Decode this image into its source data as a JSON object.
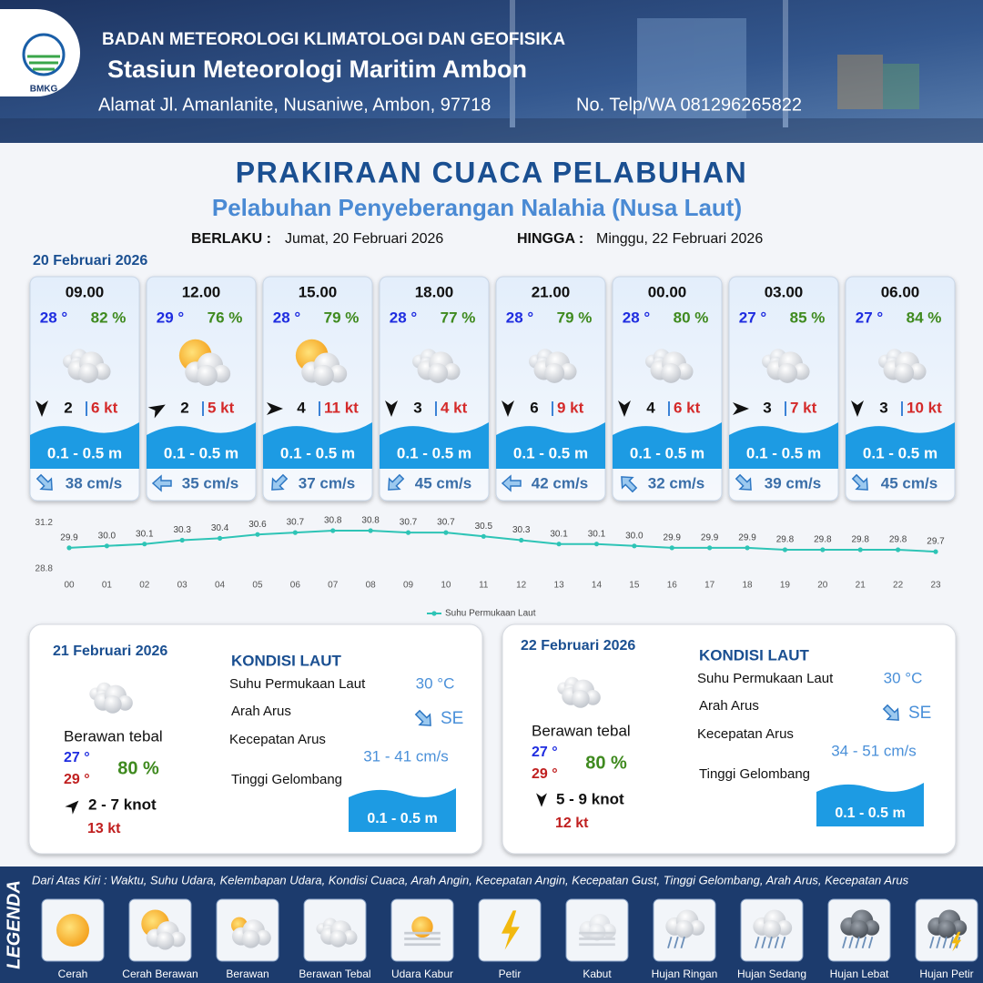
{
  "header": {
    "logo": "BMKG",
    "org": "BADAN METEOROLOGI KLIMATOLOGI DAN GEOFISIKA",
    "station": "Stasiun Meteorologi Maritim Ambon",
    "address": "Alamat Jl. Amanlanite, Nusaniwe, Ambon, 97718",
    "phone": "No. Telp/WA  081296265822"
  },
  "title": "PRAKIRAAN CUACA PELABUHAN",
  "subtitle": "Pelabuhan Penyeberangan Nalahia (Nusa Laut)",
  "valid_from_label": "BERLAKU :",
  "valid_from": "Jumat, 20 Februari 2026",
  "valid_to_label": "HINGGA :",
  "valid_to": "Minggu, 22 Februari 2026",
  "day1": {
    "date": "20 Februari 2026",
    "cards": [
      {
        "time": "09.00",
        "temp": "28 °",
        "humidity": "82 %",
        "wind": "2",
        "gust": "6 kt",
        "wave": "0.1 - 0.5 m",
        "current": "38 cm/s"
      },
      {
        "time": "12.00",
        "temp": "29 °",
        "humidity": "76 %",
        "wind": "2",
        "gust": "5 kt",
        "wave": "0.1 - 0.5 m",
        "current": "35 cm/s"
      },
      {
        "time": "15.00",
        "temp": "28 °",
        "humidity": "79 %",
        "wind": "4",
        "gust": "11 kt",
        "wave": "0.1 - 0.5 m",
        "current": "37 cm/s"
      },
      {
        "time": "18.00",
        "temp": "28 °",
        "humidity": "77 %",
        "wind": "3",
        "gust": "4 kt",
        "wave": "0.1 - 0.5 m",
        "current": "45 cm/s"
      },
      {
        "time": "21.00",
        "temp": "28 °",
        "humidity": "79 %",
        "wind": "6",
        "gust": "9 kt",
        "wave": "0.1 - 0.5 m",
        "current": "42 cm/s"
      },
      {
        "time": "00.00",
        "temp": "28 °",
        "humidity": "80 %",
        "wind": "4",
        "gust": "6 kt",
        "wave": "0.1 - 0.5 m",
        "current": "32 cm/s"
      },
      {
        "time": "03.00",
        "temp": "27 °",
        "humidity": "85 %",
        "wind": "3",
        "gust": "7 kt",
        "wave": "0.1 - 0.5 m",
        "current": "39 cm/s"
      },
      {
        "time": "06.00",
        "temp": "27 °",
        "humidity": "84 %",
        "wind": "3",
        "gust": "10 kt",
        "wave": "0.1 - 0.5 m",
        "current": "45 cm/s"
      }
    ]
  },
  "chart_data": {
    "type": "line",
    "categories": [
      "00",
      "01",
      "02",
      "03",
      "04",
      "05",
      "06",
      "07",
      "08",
      "09",
      "10",
      "11",
      "12",
      "13",
      "14",
      "15",
      "16",
      "17",
      "18",
      "19",
      "20",
      "21",
      "22",
      "23"
    ],
    "series": [
      {
        "name": "Suhu Permukaan Laut",
        "color": "#2ec4b6",
        "values": [
          29.9,
          30.0,
          30.1,
          30.3,
          30.4,
          30.6,
          30.7,
          30.8,
          30.8,
          30.7,
          30.7,
          30.5,
          30.3,
          30.1,
          30.1,
          30.0,
          29.9,
          29.9,
          29.9,
          29.8,
          29.8,
          29.8,
          29.8,
          29.7
        ],
        "value_labels": [
          "29.9",
          "30.0",
          "30.1",
          "30.3",
          "30.4",
          "30.6",
          "30.7",
          "30.8",
          "30.8",
          "30.7",
          "30.7",
          "30.5",
          "30.3",
          "30.1",
          "30.1",
          "30.0",
          "29.9",
          "29.9",
          "29.9",
          "29.8",
          "29.8",
          "29.8",
          "29.8",
          "29.7"
        ]
      }
    ],
    "ylim": [
      28.8,
      31.2
    ],
    "yticks": [
      28.8,
      31.2
    ],
    "legend": "bottom"
  },
  "days": [
    {
      "date": "21 Februari 2026",
      "condition": "Berawan tebal",
      "temp_min": "27 °",
      "temp_max": "29 °",
      "humidity": "80 %",
      "wind": "2  - 7 knot",
      "gust": "13 kt",
      "sea_heading": "KONDISI LAUT",
      "sst_label": "Suhu Permukaan Laut",
      "sst": "30 °C",
      "current_dir_label": "Arah Arus",
      "current_dir": "SE",
      "current_speed_label": "Kecepatan Arus",
      "current_speed": "31 - 41 cm/s",
      "wave_label": "Tinggi Gelombang",
      "wave": "0.1 - 0.5 m"
    },
    {
      "date": "22 Februari 2026",
      "condition": "Berawan tebal",
      "temp_min": "27 °",
      "temp_max": "29 °",
      "humidity": "80 %",
      "wind": "5 - 9 knot",
      "gust": "12 kt",
      "sea_heading": "KONDISI LAUT",
      "sst_label": "Suhu Permukaan Laut",
      "sst": "30 °C",
      "current_dir_label": "Arah Arus",
      "current_dir": "SE",
      "current_speed_label": "Kecepatan Arus",
      "current_speed": "34 - 51 cm/s",
      "wave_label": "Tinggi Gelombang",
      "wave": "0.1 - 0.5 m"
    }
  ],
  "legend": {
    "title": "LEGENDA",
    "description": "Dari Atas Kiri : Waktu, Suhu Udara, Kelembapan Udara, Kondisi Cuaca, Arah Angin, Kecepatan Angin, Kecepatan Gust, Tinggi Gelombang, Arah Arus, Kecepatan Arus",
    "items": [
      "Cerah",
      "Cerah Berawan",
      "Berawan",
      "Berawan Tebal",
      "Udara Kabur",
      "Petir",
      "Kabut",
      "Hujan Ringan",
      "Hujan Sedang",
      "Hujan Lebat",
      "Hujan Petir"
    ]
  }
}
